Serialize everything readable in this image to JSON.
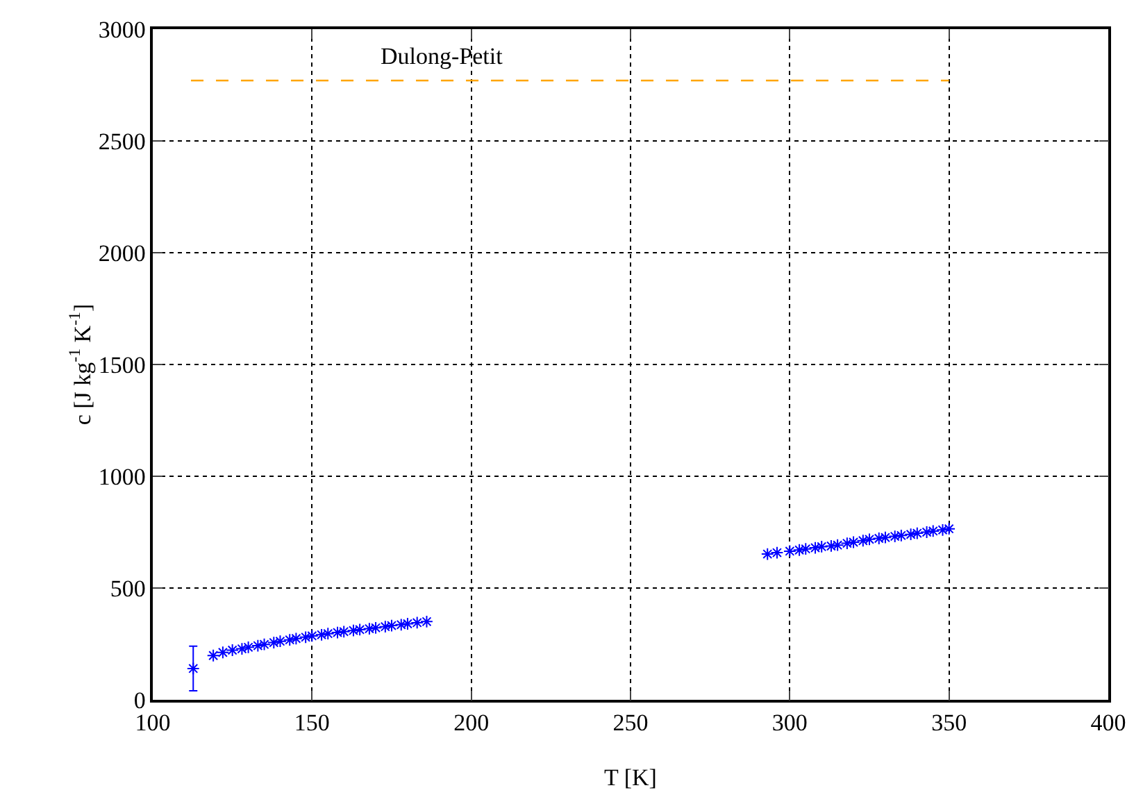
{
  "chart_data": {
    "type": "scatter",
    "xlabel": "T [K]",
    "ylabel": "c [J kg$^{-1}$ K$^{-1}$]",
    "xlim": [
      100,
      400
    ],
    "xticks": [
      100,
      150,
      200,
      250,
      300,
      350,
      400
    ],
    "ylim": [
      0,
      3000
    ],
    "yticks": [
      0,
      500,
      1000,
      1500,
      2000,
      2500,
      3000
    ],
    "grid": true,
    "legend": false,
    "marker": "cross",
    "series": [
      {
        "color": "#0000ff",
        "x": [
          112.7,
          119,
          122,
          125,
          128,
          130,
          133,
          135,
          138,
          140,
          143,
          145,
          148,
          150,
          153,
          155,
          158,
          160,
          163,
          165,
          168,
          170,
          173,
          175,
          178,
          180,
          183,
          186
        ],
        "values": [
          140,
          198,
          212,
          222,
          228,
          235,
          242,
          248,
          256,
          262,
          268,
          274,
          280,
          286,
          291,
          296,
          301,
          305,
          310,
          314,
          318,
          322,
          327,
          332,
          336,
          340,
          345,
          350
        ],
        "errors": [
          100,
          null,
          null,
          null,
          null,
          null,
          null,
          null,
          null,
          null,
          null,
          null,
          null,
          null,
          null,
          null,
          null,
          null,
          null,
          null,
          null,
          null,
          null,
          null,
          null,
          null,
          null,
          null
        ]
      },
      {
        "color": "#0000ff",
        "x": [
          293,
          296,
          300,
          303,
          305,
          308,
          310,
          313,
          315,
          318,
          320,
          323,
          325,
          328,
          330,
          333,
          335,
          338,
          340,
          343,
          345,
          348,
          350
        ],
        "values": [
          652,
          658,
          665,
          670,
          675,
          680,
          685,
          688,
          692,
          700,
          705,
          712,
          718,
          722,
          726,
          731,
          735,
          740,
          745,
          750,
          755,
          760,
          765
        ]
      },
      {
        "type": "line",
        "name": "Dulong-Petit",
        "color": "#ffa500",
        "line_style": "dashed",
        "marker": "none",
        "x": [
          112,
          350
        ],
        "values": [
          2770,
          2770
        ]
      }
    ]
  }
}
